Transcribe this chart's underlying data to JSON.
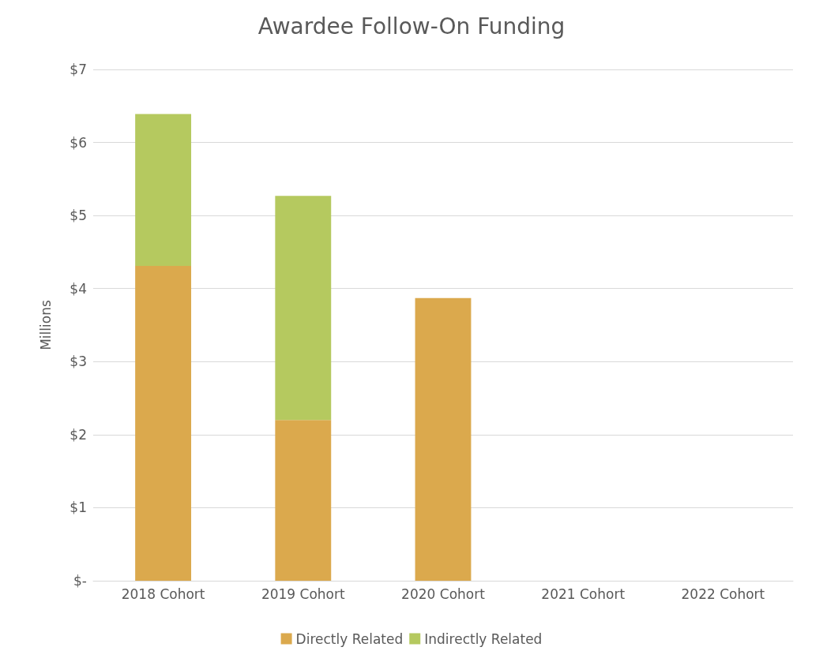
{
  "chart_data": {
    "type": "bar",
    "title": "Awardee Follow-On Funding",
    "ylabel": "Millions",
    "categories": [
      "2018 Cohort",
      "2019 Cohort",
      "2020 Cohort",
      "2021 Cohort",
      "2022 Cohort"
    ],
    "stacked": true,
    "series": [
      {
        "name": "Directly Related",
        "color": "#dba94d",
        "values": [
          4.31,
          2.2,
          3.87,
          null,
          null
        ]
      },
      {
        "name": "Indirectly Related",
        "color": "#b5c95f",
        "values": [
          2.08,
          3.07,
          null,
          null,
          null
        ]
      }
    ],
    "ylim": [
      0,
      7
    ],
    "yticks": [
      {
        "value": 0,
        "label": "$-"
      },
      {
        "value": 1,
        "label": "$1"
      },
      {
        "value": 2,
        "label": "$2"
      },
      {
        "value": 3,
        "label": "$3"
      },
      {
        "value": 4,
        "label": "$4"
      },
      {
        "value": 5,
        "label": "$5"
      },
      {
        "value": 6,
        "label": "$6"
      },
      {
        "value": 7,
        "label": "$7"
      }
    ],
    "grid": "y",
    "legend": "bottom"
  }
}
